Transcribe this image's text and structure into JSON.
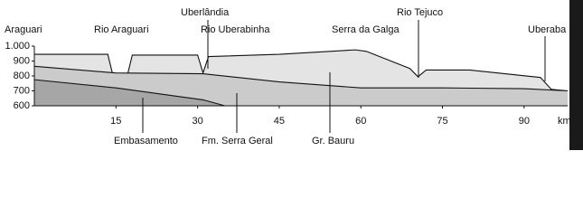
{
  "chart_data": {
    "type": "profile",
    "xlabel": "km",
    "xlim": [
      0,
      98
    ],
    "ylim": [
      600,
      1000
    ],
    "xticks": [
      15,
      30,
      45,
      60,
      75,
      90
    ],
    "yticks": [
      {
        "value": 1000,
        "label": "1.000"
      },
      900,
      800,
      700,
      600
    ],
    "places": [
      "Araguari",
      "Rio Araguari",
      "Uberlândia",
      "Rio Uberabinha",
      "Serra da Galga",
      "Rio Tejuco",
      "Uberaba"
    ],
    "series": [
      {
        "name": "Gr. Bauru",
        "color": "#e4e4e4",
        "x": [
          0,
          13.5,
          15,
          16.5,
          18,
          30,
          31,
          32,
          45,
          59,
          61,
          69,
          70.5,
          72,
          80,
          93,
          95,
          98
        ],
        "values": [
          945,
          945,
          720,
          715,
          940,
          940,
          820,
          930,
          945,
          975,
          965,
          850,
          795,
          840,
          840,
          790,
          710,
          700
        ]
      },
      {
        "name": "Fm. Serra Geral",
        "color": "#cbcbcb",
        "x": [
          0,
          15,
          31,
          45,
          60,
          75,
          90,
          98
        ],
        "values": [
          865,
          820,
          815,
          760,
          720,
          720,
          715,
          700
        ]
      },
      {
        "name": "Embasamento",
        "color": "#a6a6a6",
        "x": [
          0,
          15,
          31,
          35
        ],
        "values": [
          775,
          720,
          640,
          600
        ]
      }
    ]
  }
}
